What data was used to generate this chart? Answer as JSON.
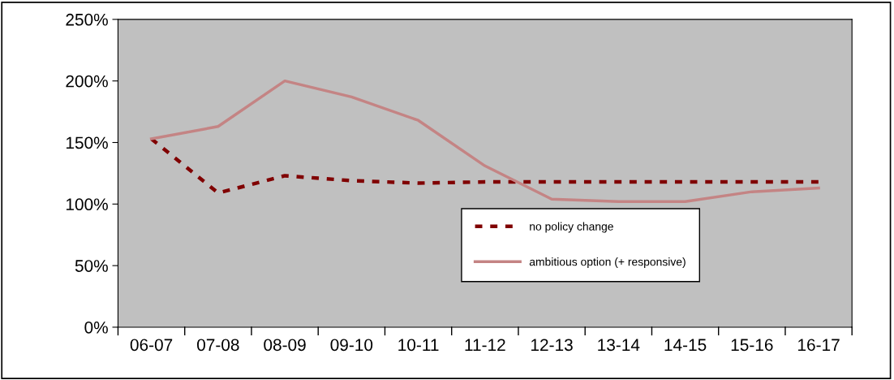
{
  "chart_data": {
    "type": "line",
    "categories": [
      "06-07",
      "07-08",
      "08-09",
      "09-10",
      "10-11",
      "11-12",
      "12-13",
      "13-14",
      "14-15",
      "15-16",
      "16-17"
    ],
    "series": [
      {
        "name": "no policy change",
        "color": "#800000",
        "line_style": "dashed",
        "values": [
          153,
          109,
          123,
          119,
          117,
          118,
          118,
          118,
          118,
          118,
          118
        ]
      },
      {
        "name": "ambitious option (+ responsive)",
        "color": "#c48484",
        "line_style": "solid",
        "values": [
          153,
          163,
          200,
          187,
          168,
          131,
          104,
          102,
          102,
          110,
          113
        ]
      }
    ],
    "ylim": [
      0,
      250
    ],
    "yticks": [
      {
        "value": 0,
        "label": "0%"
      },
      {
        "value": 50,
        "label": "50%"
      },
      {
        "value": 100,
        "label": "100%"
      },
      {
        "value": 150,
        "label": "150%"
      },
      {
        "value": 200,
        "label": "200%"
      },
      {
        "value": 250,
        "label": "250%"
      }
    ],
    "grid": false,
    "legend": "bottom right",
    "marker": "none"
  }
}
